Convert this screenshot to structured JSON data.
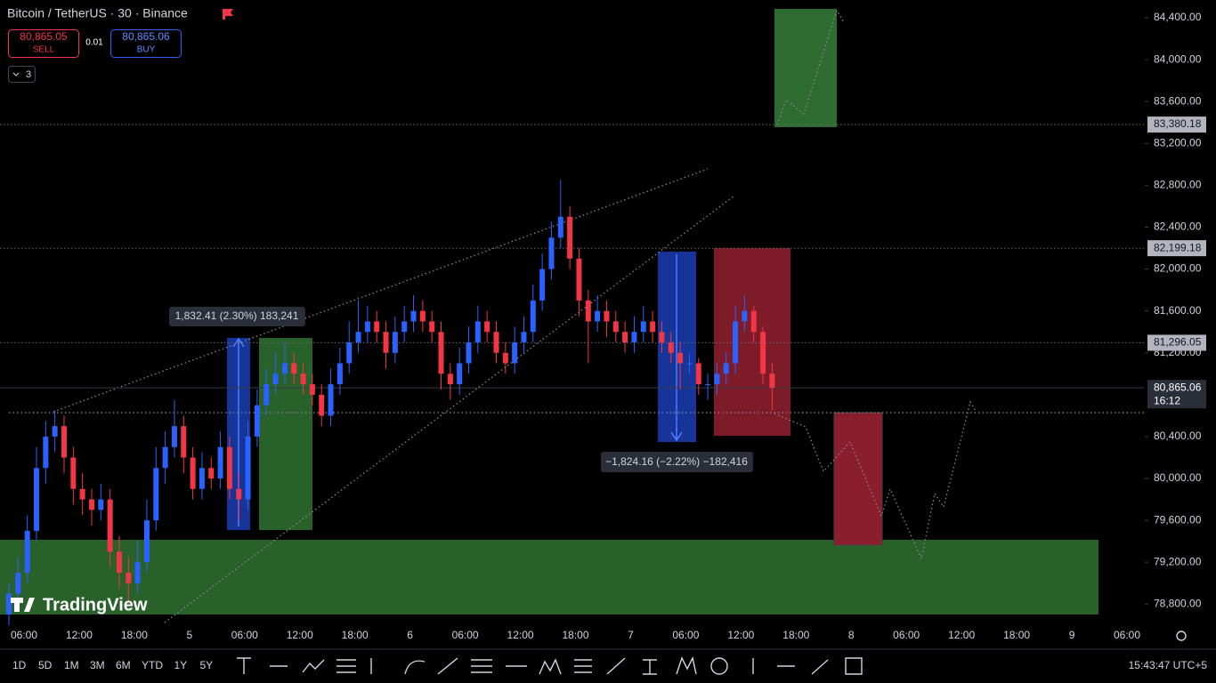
{
  "header": {
    "sell_price": "80,865.05",
    "sell_label": "SELL",
    "spread": "0.01",
    "buy_price": "80,865.06",
    "buy_label": "BUY",
    "indicators_count": "3"
  },
  "chart_data": {
    "type": "candlestick",
    "title": "Bitcoin / TetherUS · 30 · Binance",
    "up_color": "#2962ff",
    "down_color": "#f23645",
    "ohlc": [
      [
        78700,
        79000,
        78600,
        78900
      ],
      [
        78900,
        79250,
        78800,
        79100
      ],
      [
        79100,
        79650,
        79000,
        79500
      ],
      [
        79500,
        80300,
        79400,
        80100
      ],
      [
        80100,
        80550,
        79950,
        80400
      ],
      [
        80400,
        80650,
        80250,
        80500
      ],
      [
        80500,
        80600,
        80050,
        80200
      ],
      [
        80200,
        80300,
        79750,
        79900
      ],
      [
        79900,
        80050,
        79650,
        79800
      ],
      [
        79800,
        79900,
        79550,
        79700
      ],
      [
        79700,
        79950,
        79600,
        79800
      ],
      [
        79800,
        79900,
        79150,
        79300
      ],
      [
        79300,
        79450,
        78950,
        79100
      ],
      [
        79100,
        79250,
        78800,
        79000
      ],
      [
        79000,
        79400,
        78900,
        79200
      ],
      [
        79200,
        79800,
        79100,
        79600
      ],
      [
        79600,
        80300,
        79500,
        80100
      ],
      [
        80100,
        80450,
        79950,
        80300
      ],
      [
        80300,
        80750,
        80200,
        80500
      ],
      [
        80500,
        80600,
        80050,
        80200
      ],
      [
        80200,
        80300,
        79800,
        79900
      ],
      [
        79900,
        80250,
        79800,
        80100
      ],
      [
        80100,
        80200,
        79900,
        80000
      ],
      [
        80000,
        80450,
        79900,
        80300
      ],
      [
        80300,
        80400,
        79800,
        79900
      ],
      [
        79900,
        80050,
        79600,
        79800
      ],
      [
        79800,
        80550,
        79700,
        80400
      ],
      [
        80400,
        80850,
        80300,
        80700
      ],
      [
        80700,
        81050,
        80600,
        80900
      ],
      [
        80900,
        81200,
        80800,
        81000
      ],
      [
        81000,
        81300,
        80900,
        81100
      ],
      [
        81100,
        81200,
        80900,
        81000
      ],
      [
        81000,
        81100,
        80800,
        80900
      ],
      [
        80900,
        81000,
        80700,
        80800
      ],
      [
        80800,
        80900,
        80500,
        80600
      ],
      [
        80600,
        81050,
        80500,
        80900
      ],
      [
        80900,
        81250,
        80800,
        81100
      ],
      [
        81100,
        81500,
        81000,
        81300
      ],
      [
        81300,
        81700,
        81200,
        81400
      ],
      [
        81400,
        81650,
        81300,
        81500
      ],
      [
        81500,
        81600,
        81300,
        81400
      ],
      [
        81400,
        81500,
        81050,
        81200
      ],
      [
        81200,
        81550,
        81100,
        81400
      ],
      [
        81400,
        81650,
        81300,
        81500
      ],
      [
        81500,
        81750,
        81400,
        81600
      ],
      [
        81600,
        81700,
        81400,
        81500
      ],
      [
        81500,
        81600,
        81300,
        81400
      ],
      [
        81400,
        81500,
        80850,
        81000
      ],
      [
        81000,
        81100,
        80750,
        80900
      ],
      [
        80900,
        81250,
        80800,
        81100
      ],
      [
        81100,
        81450,
        81000,
        81300
      ],
      [
        81300,
        81650,
        81200,
        81500
      ],
      [
        81500,
        81600,
        81300,
        81400
      ],
      [
        81400,
        81500,
        81100,
        81200
      ],
      [
        81200,
        81300,
        81000,
        81100
      ],
      [
        81100,
        81450,
        81000,
        81300
      ],
      [
        81300,
        81550,
        81200,
        81400
      ],
      [
        81400,
        81850,
        81300,
        81700
      ],
      [
        81700,
        82150,
        81600,
        82000
      ],
      [
        82000,
        82450,
        81900,
        82300
      ],
      [
        82300,
        82850,
        82200,
        82500
      ],
      [
        82500,
        82600,
        82000,
        82100
      ],
      [
        82100,
        82200,
        81550,
        81700
      ],
      [
        81700,
        81800,
        81100,
        81500
      ],
      [
        81500,
        81750,
        81400,
        81600
      ],
      [
        81600,
        81700,
        81350,
        81500
      ],
      [
        81500,
        81600,
        81300,
        81400
      ],
      [
        81400,
        81500,
        81200,
        81300
      ],
      [
        81300,
        81550,
        81200,
        81400
      ],
      [
        81400,
        81650,
        81300,
        81500
      ],
      [
        81500,
        81600,
        81300,
        81400
      ],
      [
        81400,
        81500,
        81200,
        81300
      ],
      [
        81300,
        81400,
        81100,
        81200
      ],
      [
        81200,
        81300,
        80850,
        81100
      ],
      [
        81100,
        81200,
        81000,
        81100
      ],
      [
        81100,
        81150,
        80800,
        80900
      ],
      [
        80900,
        81000,
        80750,
        80900
      ],
      [
        80900,
        81100,
        80800,
        81000
      ],
      [
        81000,
        81200,
        80900,
        81100
      ],
      [
        81100,
        81650,
        81000,
        81500
      ],
      [
        81500,
        81750,
        81400,
        81600
      ],
      [
        81600,
        81650,
        81300,
        81400
      ],
      [
        81400,
        81450,
        80900,
        81000
      ],
      [
        81000,
        81100,
        80650,
        80865
      ]
    ],
    "ylim": [
      78624,
      84570
    ],
    "yticks": [
      {
        "value": 78800,
        "label": "78,800.00"
      },
      {
        "value": 79200,
        "label": "79,200.00"
      },
      {
        "value": 79600,
        "label": "79,600.00"
      },
      {
        "value": 80000,
        "label": "80,000.00"
      },
      {
        "value": 80400,
        "label": "80,400.00"
      },
      {
        "value": 81200,
        "label": "81,200.00"
      },
      {
        "value": 81600,
        "label": "81,600.00"
      },
      {
        "value": 82000,
        "label": "82,000.00"
      },
      {
        "value": 82400,
        "label": "82,400.00"
      },
      {
        "value": 82800,
        "label": "82,800.00"
      },
      {
        "value": 83200,
        "label": "83,200.00"
      },
      {
        "value": 83600,
        "label": "83,600.00"
      },
      {
        "value": 84000,
        "label": "84,000.00"
      },
      {
        "value": 84400,
        "label": "84,400.00"
      }
    ],
    "price_lines": [
      {
        "value": 83380.18,
        "label": "83,380.18"
      },
      {
        "value": 82199.18,
        "label": "82,199.18"
      },
      {
        "value": 81296.05,
        "label": "81,296.05"
      }
    ],
    "last_price": {
      "value": 80865.06,
      "label": "80,865.06",
      "countdown": "16:12"
    },
    "x_labels": [
      "06:00",
      "12:00",
      "18:00",
      "5",
      "06:00",
      "12:00",
      "18:00",
      "6",
      "06:00",
      "12:00",
      "18:00",
      "7",
      "06:00",
      "12:00",
      "18:00",
      "8",
      "06:00",
      "12:00",
      "18:00",
      "9",
      "06:00"
    ],
    "annotations": [
      "1,832.41 (2.30%) 183,241",
      "−1,824.16 (−2.22%) −182,416"
    ],
    "watermark": "TradingView"
  },
  "toolbar": {
    "intervals": [
      "1D",
      "5D",
      "1M",
      "3M",
      "6M",
      "YTD",
      "1Y",
      "5Y"
    ],
    "clock": "15:43:47 UTC+5"
  }
}
